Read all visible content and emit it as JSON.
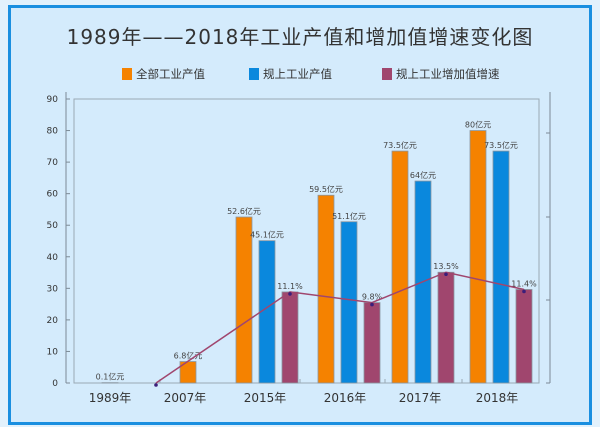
{
  "chart_data": {
    "type": "bar",
    "title": "1989年——2018年工业产值和增加值增速变化图",
    "categories": [
      "1989年",
      "2007年",
      "2015年",
      "2016年",
      "2017年",
      "2018年"
    ],
    "ylim": [
      0,
      90
    ],
    "yticks": [
      0,
      10,
      20,
      30,
      40,
      50,
      60,
      70,
      80,
      90
    ],
    "grid": false,
    "legend_placement": "top",
    "series": [
      {
        "name": "全部工业产值",
        "kind": "bar",
        "color": "#f58200",
        "values": [
          0.1,
          6.8,
          52.6,
          59.5,
          73.5,
          80
        ],
        "labels": [
          "0.1亿元",
          "6.8亿元",
          "52.6亿元",
          "59.5亿元",
          "73.5亿元",
          "80亿元"
        ]
      },
      {
        "name": "规上工业产值",
        "kind": "bar",
        "color": "#0a88dd",
        "values": [
          null,
          null,
          45.1,
          51.1,
          64,
          73.5
        ],
        "labels": [
          "",
          "",
          "45.1亿元",
          "51.1亿元",
          "64亿元",
          "73.5亿元"
        ]
      },
      {
        "name": "规上工业增加值增速",
        "kind": "bar+line",
        "color": "#a0466e",
        "values": [
          0,
          null,
          11.1,
          9.8,
          13.5,
          11.4
        ],
        "labels": [
          "",
          "",
          "11.1%",
          "9.8%",
          "13.5%",
          "11.4%"
        ],
        "unit": "%"
      }
    ]
  }
}
